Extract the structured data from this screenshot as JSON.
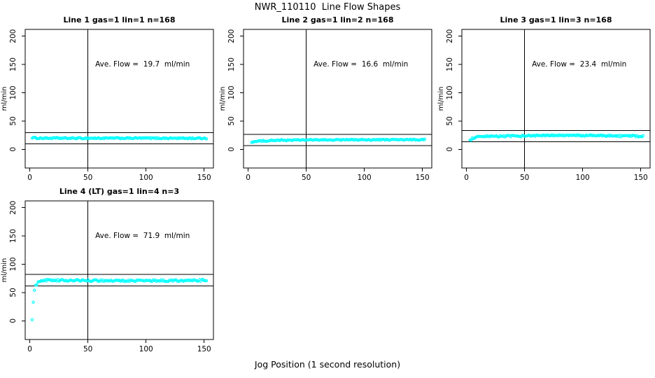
{
  "figure": {
    "title": "NWR_110110  Line Flow Shapes",
    "xlabel": "Jog Position (1 second resolution)"
  },
  "style": {
    "point_color": "#00ffff",
    "axis_color": "#000000",
    "background_color": "#ffffff"
  },
  "chart_data": [
    {
      "type": "scatter",
      "title": "Line 1 gas=1 lin=1 n=168",
      "line": 1,
      "gas": 1,
      "lin": 1,
      "n": 168,
      "annotation": "Ave. Flow =  19.7  ml/min",
      "ave_flow_ml_min": 19.7,
      "ylabel": "ml/min",
      "xticks": [
        0,
        50,
        100,
        150
      ],
      "yticks": [
        0,
        50,
        100,
        150,
        200
      ],
      "xlim": [
        -4,
        158
      ],
      "ylim": [
        -33,
        212
      ],
      "vline_x": 50,
      "hlines": [
        9.7,
        29.7
      ],
      "x_start": 2,
      "x_end": 152,
      "lead_in_points": [],
      "trend_keypoints": [
        [
          2,
          20.8
        ],
        [
          6,
          19.8
        ],
        [
          40,
          19.6
        ],
        [
          100,
          19.8
        ],
        [
          152,
          19.5
        ]
      ],
      "noise_amplitude": 1.1
    },
    {
      "type": "scatter",
      "title": "Line 2 gas=1 lin=2 n=168",
      "line": 2,
      "gas": 1,
      "lin": 2,
      "n": 168,
      "annotation": "Ave. Flow =  16.6  ml/min",
      "ave_flow_ml_min": 16.6,
      "ylabel": "ml/min",
      "xticks": [
        0,
        50,
        100,
        150
      ],
      "yticks": [
        0,
        50,
        100,
        150,
        200
      ],
      "xlim": [
        -4,
        158
      ],
      "ylim": [
        -33,
        212
      ],
      "vline_x": 50,
      "hlines": [
        6.6,
        26.6
      ],
      "x_start": 3,
      "x_end": 152,
      "lead_in_points": [],
      "trend_keypoints": [
        [
          3,
          12.8
        ],
        [
          8,
          14.2
        ],
        [
          18,
          15.6
        ],
        [
          45,
          16.5
        ],
        [
          100,
          16.9
        ],
        [
          152,
          17.0
        ]
      ],
      "noise_amplitude": 1.0
    },
    {
      "type": "scatter",
      "title": "Line 3 gas=1 lin=3 n=168",
      "line": 3,
      "gas": 1,
      "lin": 3,
      "n": 168,
      "annotation": "Ave. Flow =  23.4  ml/min",
      "ave_flow_ml_min": 23.4,
      "ylabel": "ml/min",
      "xticks": [
        0,
        50,
        100,
        150
      ],
      "yticks": [
        0,
        50,
        100,
        150,
        200
      ],
      "xlim": [
        -4,
        158
      ],
      "ylim": [
        -33,
        212
      ],
      "vline_x": 50,
      "hlines": [
        13.4,
        33.4
      ],
      "x_start": 3,
      "x_end": 152,
      "lead_in_points": [],
      "trend_keypoints": [
        [
          3,
          15.5
        ],
        [
          5,
          19.0
        ],
        [
          10,
          21.8
        ],
        [
          25,
          23.0
        ],
        [
          60,
          24.2
        ],
        [
          100,
          24.6
        ],
        [
          152,
          23.2
        ]
      ],
      "noise_amplitude": 1.4
    },
    {
      "type": "scatter",
      "title": "Line 4 (LT) gas=1 lin=4 n=3",
      "line": 4,
      "line_note": "(LT)",
      "gas": 1,
      "lin": 4,
      "n": 3,
      "annotation": "Ave. Flow =  71.9  ml/min",
      "ave_flow_ml_min": 71.9,
      "ylabel": "ml/min",
      "xticks": [
        0,
        50,
        100,
        150
      ],
      "yticks": [
        0,
        50,
        100,
        150,
        200
      ],
      "xlim": [
        -4,
        158
      ],
      "ylim": [
        -33,
        212
      ],
      "vline_x": 50,
      "hlines": [
        61.9,
        81.9
      ],
      "x_start": 6,
      "x_end": 152,
      "lead_in_points": [
        [
          2,
          2
        ],
        [
          3,
          33
        ],
        [
          4,
          54
        ],
        [
          5,
          63
        ]
      ],
      "trend_keypoints": [
        [
          6,
          64.0
        ],
        [
          7,
          67.5
        ],
        [
          9,
          70.5
        ],
        [
          15,
          71.8
        ],
        [
          50,
          71.2
        ],
        [
          100,
          70.8
        ],
        [
          152,
          71.6
        ]
      ],
      "noise_amplitude": 1.5
    }
  ]
}
